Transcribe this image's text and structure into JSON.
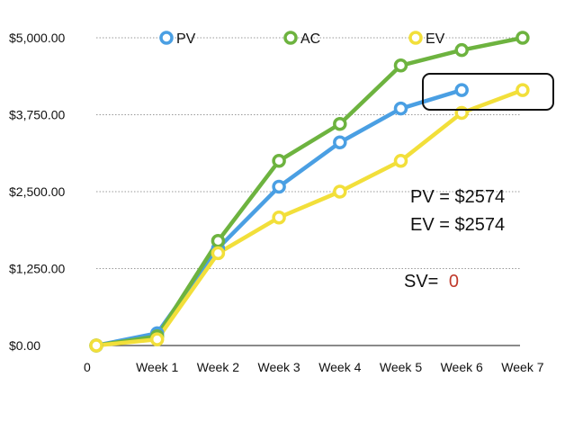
{
  "chart_data": {
    "type": "line",
    "x": [
      "0",
      "Week 1",
      "Week 2",
      "Week 3",
      "Week 4",
      "Week 5",
      "Week 6",
      "Week 7"
    ],
    "series": [
      {
        "name": "PV",
        "color": "#4a9fe3",
        "values": [
          0,
          200,
          1580,
          2580,
          3300,
          3850,
          4150,
          null
        ]
      },
      {
        "name": "AC",
        "color": "#6db33f",
        "values": [
          0,
          150,
          1700,
          3000,
          3600,
          4550,
          4800,
          5000
        ]
      },
      {
        "name": "EV",
        "color": "#f2df3a",
        "values": [
          0,
          100,
          1500,
          2080,
          2500,
          3000,
          3780,
          4150
        ]
      }
    ],
    "yticks": [
      "$0.00",
      "$1,250.00",
      "$2,500.00",
      "$3,750.00",
      "$5,000.00"
    ],
    "ylim": [
      0,
      5000
    ],
    "grid": true,
    "legend": "top",
    "annotations": {
      "pv": "PV = $2574",
      "ev": "EV = $2574",
      "sv_label": "SV=",
      "sv_value": "0",
      "sv_value_color": "#c0392b"
    }
  }
}
